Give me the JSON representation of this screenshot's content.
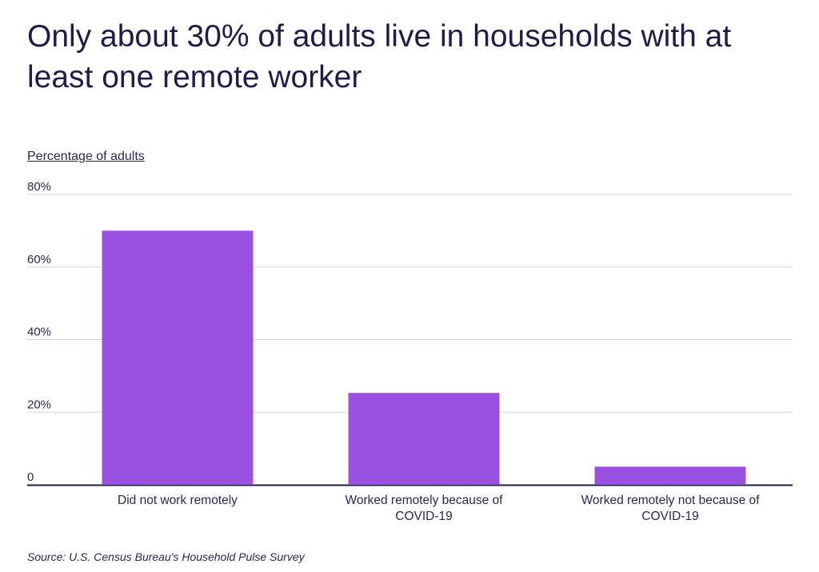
{
  "chart_data": {
    "type": "bar",
    "title": "Only about 30% of adults live in households with at least one remote worker",
    "ylabel": "Percentage of adults",
    "xlabel": "",
    "categories": [
      [
        "Did not work remotely"
      ],
      [
        "Worked remotely because of",
        "COVID-19"
      ],
      [
        "Worked remotely not because of",
        "COVID-19"
      ]
    ],
    "values": [
      70,
      25.3,
      5
    ],
    "ylim": [
      0,
      80
    ],
    "yticks": [
      0,
      20,
      40,
      60,
      80
    ],
    "ytick_labels": [
      "0",
      "20%",
      "40%",
      "60%",
      "80%"
    ],
    "grid": true,
    "bar_color": "#9a51e0",
    "source": "Source:  U.S. Census Bureau's Household Pulse Survey"
  }
}
